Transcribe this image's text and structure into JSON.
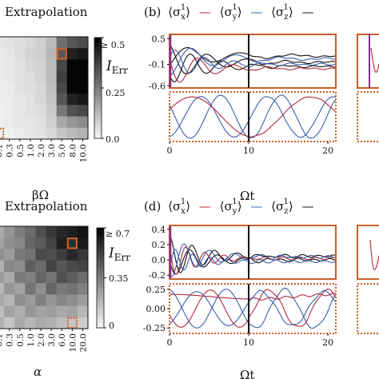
{
  "colors": {
    "red": "#b5283c",
    "blue": "#3a5fae",
    "black": "#111111",
    "orange_frame": "#c8602a",
    "purple_frame": "#8b2c8e",
    "marker": "#d0622e"
  },
  "chart_data": [
    {
      "id": "a",
      "type": "heatmap",
      "title": "Extrapolation",
      "xlabel": "βΩ",
      "x_ticks": [
        "0.1",
        "0.3",
        "0.5",
        "1.0",
        "2.0",
        "3.0",
        "5.0",
        "8.0",
        "10.0"
      ],
      "colorbar_label": "I",
      "colorbar_label_sub": "Err",
      "colorbar_ticks": [
        "≥ 0.5",
        "0.25",
        "0.0"
      ],
      "values": [
        [
          0.03,
          0.04,
          0.05,
          0.06,
          0.08,
          0.12,
          0.28,
          0.33,
          0.35
        ],
        [
          0.02,
          0.03,
          0.05,
          0.07,
          0.08,
          0.13,
          0.33,
          0.44,
          0.46
        ],
        [
          0.02,
          0.03,
          0.04,
          0.06,
          0.07,
          0.12,
          0.36,
          0.5,
          0.5
        ],
        [
          0.02,
          0.03,
          0.04,
          0.05,
          0.07,
          0.12,
          0.38,
          0.5,
          0.5
        ],
        [
          0.02,
          0.02,
          0.04,
          0.05,
          0.06,
          0.11,
          0.36,
          0.5,
          0.5
        ],
        [
          0.02,
          0.02,
          0.03,
          0.04,
          0.06,
          0.1,
          0.33,
          0.44,
          0.46
        ],
        [
          0.01,
          0.02,
          0.03,
          0.04,
          0.05,
          0.09,
          0.26,
          0.34,
          0.36
        ],
        [
          0.01,
          0.02,
          0.03,
          0.03,
          0.04,
          0.08,
          0.16,
          0.2,
          0.22
        ],
        [
          0.01,
          0.01,
          0.02,
          0.03,
          0.04,
          0.06,
          0.1,
          0.12,
          0.14
        ]
      ],
      "vmax": 0.5,
      "marker_solid": {
        "row": 1,
        "col": 6
      },
      "marker_dotted": {
        "row": 8,
        "col": 0
      }
    },
    {
      "id": "b",
      "type": "line",
      "panel_label": "(b)",
      "legend_label_1": "⟨σ",
      "legend_sup": "1",
      "legend_sub_x": "x",
      "legend_sub_y": "y",
      "legend_sub_z": "z",
      "xlabel": "Ωt",
      "x_ticks": [
        "0",
        "10",
        "20"
      ],
      "xlim": [
        0,
        21
      ],
      "t_cut": 10,
      "upper": {
        "ylim": [
          -0.65,
          0.6
        ],
        "y_ticks": [
          "0.5",
          "-0.1",
          "-0.6"
        ],
        "y_tick_values": [
          0.5,
          -0.1,
          -0.6
        ],
        "series": [
          {
            "color": "black",
            "amp": 0.42,
            "omega": 1.25,
            "phase": 0.3,
            "decay": 0.18,
            "offset": -0.05
          },
          {
            "color": "black",
            "amp": 0.45,
            "omega": 1.55,
            "phase": 2.1,
            "decay": 0.2,
            "offset": -0.15
          },
          {
            "color": "black",
            "amp": 0.3,
            "omega": 0.95,
            "phase": 4.0,
            "decay": 0.15,
            "offset": 0.1
          },
          {
            "color": "red",
            "amp": 0.48,
            "omega": 1.4,
            "phase": 1.2,
            "decay": 0.22,
            "offset": -0.2
          },
          {
            "color": "blue",
            "amp": 0.4,
            "omega": 1.1,
            "phase": 3.2,
            "decay": 0.17,
            "offset": 0.03
          },
          {
            "color": "blue",
            "amp": 0.35,
            "omega": 1.7,
            "phase": 5.0,
            "decay": 0.19,
            "offset": -0.1
          }
        ]
      },
      "lower": {
        "ylim": [
          -1.1,
          1.1
        ],
        "series": [
          {
            "color": "blue",
            "amp": 0.95,
            "omega": 0.82,
            "phase": 1.0,
            "decay": 0.0,
            "offset": 0.0
          },
          {
            "color": "blue",
            "amp": 0.9,
            "omega": 0.75,
            "phase": 3.3,
            "decay": 0.0,
            "offset": 0.0
          },
          {
            "color": "red",
            "amp": 0.88,
            "omega": 0.42,
            "phase": -1.2,
            "decay": 0.0,
            "offset": 0.0
          }
        ]
      }
    },
    {
      "id": "c",
      "type": "heatmap",
      "title": "Extrapolation",
      "xlabel": "α",
      "x_ticks": [
        "0.1",
        "0.3",
        "0.5",
        "1.0",
        "2.0",
        "3.0",
        "6.0",
        "10.0",
        "20.0"
      ],
      "colorbar_label": "I",
      "colorbar_label_sub": "Err",
      "colorbar_ticks": [
        "≥ 0.7",
        "0.35",
        "0"
      ],
      "values": [
        [
          0.22,
          0.28,
          0.35,
          0.4,
          0.48,
          0.55,
          0.6,
          0.62,
          0.66
        ],
        [
          0.24,
          0.3,
          0.32,
          0.42,
          0.45,
          0.52,
          0.62,
          0.58,
          0.64
        ],
        [
          0.3,
          0.26,
          0.36,
          0.38,
          0.5,
          0.48,
          0.54,
          0.6,
          0.55
        ],
        [
          0.2,
          0.32,
          0.3,
          0.44,
          0.4,
          0.52,
          0.46,
          0.5,
          0.52
        ],
        [
          0.26,
          0.22,
          0.36,
          0.34,
          0.42,
          0.38,
          0.48,
          0.44,
          0.4
        ],
        [
          0.18,
          0.28,
          0.24,
          0.38,
          0.3,
          0.42,
          0.36,
          0.38,
          0.34
        ],
        [
          0.22,
          0.18,
          0.3,
          0.26,
          0.34,
          0.28,
          0.32,
          0.3,
          0.26
        ],
        [
          0.16,
          0.24,
          0.2,
          0.28,
          0.24,
          0.26,
          0.22,
          0.24,
          0.18
        ],
        [
          0.2,
          0.14,
          0.22,
          0.18,
          0.22,
          0.2,
          0.16,
          0.14,
          0.12
        ]
      ],
      "vmax": 0.7,
      "marker_solid": {
        "row": 1,
        "col": 7
      },
      "marker_dotted": {
        "row": 8,
        "col": 7
      }
    },
    {
      "id": "d",
      "type": "line",
      "panel_label": "(d)",
      "legend_label_1": "⟨σ",
      "legend_sup": "1",
      "legend_sub_x": "x",
      "legend_sub_y": "y",
      "legend_sub_z": "z",
      "xlabel": "Ωt",
      "x_ticks": [
        "0",
        "10",
        "20"
      ],
      "xlim": [
        0,
        21
      ],
      "t_cut": 10,
      "upper": {
        "ylim": [
          -0.25,
          0.45
        ],
        "y_ticks": [
          "0.4",
          "0.2",
          "0.0",
          "-0.2"
        ],
        "y_tick_values": [
          0.4,
          0.2,
          0.0,
          -0.2
        ],
        "series": [
          {
            "color": "black",
            "amp": 0.28,
            "omega": 2.2,
            "phase": 0.0,
            "decay": 0.22,
            "offset": 0.05
          },
          {
            "color": "black",
            "amp": 0.22,
            "omega": 1.8,
            "phase": 1.6,
            "decay": 0.2,
            "offset": 0.0
          },
          {
            "color": "red",
            "amp": 0.25,
            "omega": 2.6,
            "phase": 0.9,
            "decay": 0.25,
            "offset": 0.02
          },
          {
            "color": "blue",
            "amp": 0.26,
            "omega": 2.0,
            "phase": 2.5,
            "decay": 0.21,
            "offset": 0.04
          },
          {
            "color": "blue",
            "amp": 0.18,
            "omega": 2.9,
            "phase": 4.1,
            "decay": 0.24,
            "offset": -0.02
          }
        ]
      },
      "lower": {
        "ylim": [
          -0.32,
          0.32
        ],
        "y_ticks": [
          "0.25",
          "0.00",
          "-0.25"
        ],
        "y_tick_values": [
          0.25,
          0.0,
          -0.25
        ],
        "series": [
          {
            "color": "red",
            "amp": 0.03,
            "omega": 0.3,
            "phase": 0.0,
            "decay": 0.0,
            "offset": 0.22
          },
          {
            "color": "blue",
            "amp": 0.25,
            "omega": 0.85,
            "phase": 0.2,
            "decay": 0.0,
            "offset": 0.0
          },
          {
            "color": "red",
            "amp": 0.24,
            "omega": 0.85,
            "phase": 1.9,
            "decay": 0.0,
            "offset": 0.0
          },
          {
            "color": "blue",
            "amp": 0.22,
            "omega": 0.78,
            "phase": 3.6,
            "decay": 0.0,
            "offset": 0.0
          }
        ]
      }
    }
  ]
}
